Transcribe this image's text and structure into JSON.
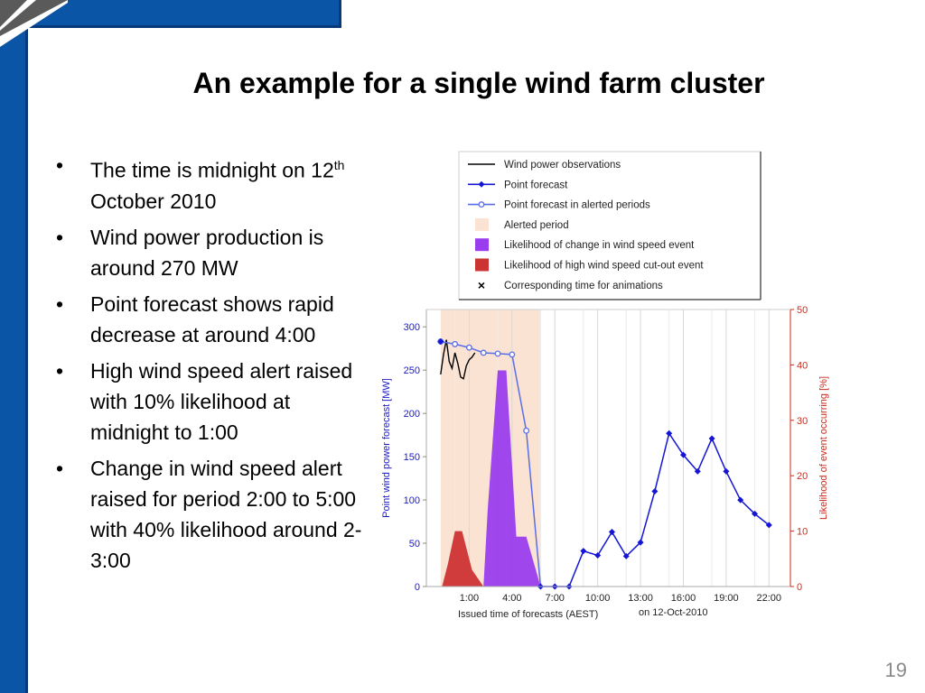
{
  "slide": {
    "title": "An example for a single wind farm cluster",
    "page_number": "19",
    "bullets": [
      {
        "text": "The time is midnight on 12",
        "sup": "th",
        "after": " October 2010"
      },
      {
        "text": "Wind power production is around 270 MW"
      },
      {
        "text": "Point forecast shows rapid decrease at around 4:00"
      },
      {
        "text": "High wind speed alert raised with 10% likelihood at midnight to 1:00"
      },
      {
        "text": "Change in wind speed alert raised for period 2:00 to 5:00 with 40% likelihood around 2-3:00"
      }
    ],
    "colors": {
      "theme_blue": "#0b55a6",
      "corner_gray": "#5a5a5a"
    }
  },
  "chart_data": {
    "type": "line",
    "xlabel": "Issued time of forecasts (AEST)",
    "xlabel_suffix": "on 12-Oct-2010",
    "ylabel_left": "Point wind power forecast [MW]",
    "ylabel_right": "Likelihood of event occurring [%]",
    "ylim_left": [
      0,
      320
    ],
    "ylim_right": [
      0,
      50
    ],
    "xlim": [
      -2,
      23.5
    ],
    "x_ticks": [
      1,
      4,
      7,
      10,
      13,
      16,
      19,
      22
    ],
    "x_tick_labels": [
      "1:00",
      "4:00",
      "7:00",
      "10:00",
      "13:00",
      "16:00",
      "19:00",
      "22:00"
    ],
    "y_ticks_left": [
      0,
      50,
      100,
      150,
      200,
      250,
      300
    ],
    "y_ticks_right": [
      0,
      10,
      20,
      30,
      40,
      50
    ],
    "grid": "vertical",
    "legend_position": "top",
    "legend": [
      {
        "label": "Wind power observations",
        "symbol": "line",
        "color": "#000000"
      },
      {
        "label": "Point forecast",
        "symbol": "line-dot",
        "color": "#1515d6"
      },
      {
        "label": "Point forecast in alerted periods",
        "symbol": "line-open",
        "color": "#5a6ee8"
      },
      {
        "label": "Alerted period",
        "symbol": "patch",
        "color": "#fbe3d3"
      },
      {
        "label": "Likelihood of change in wind speed event",
        "symbol": "patch",
        "color": "#9a3dee"
      },
      {
        "label": "Likelihood of high wind speed cut-out event",
        "symbol": "patch",
        "color": "#cc3333"
      },
      {
        "label": "Corresponding time for animations",
        "symbol": "x",
        "color": "#000000"
      }
    ],
    "alerted_period": [
      -1,
      6
    ],
    "observations": {
      "x": [
        -1,
        -0.8,
        -0.6,
        -0.4,
        -0.2,
        0,
        0.2,
        0.4,
        0.6,
        0.8,
        1,
        1.2,
        1.4
      ],
      "y": [
        245,
        268,
        285,
        260,
        252,
        270,
        258,
        242,
        240,
        255,
        262,
        265,
        270
      ]
    },
    "forecast_alerted": {
      "x": [
        -1,
        0,
        1,
        2,
        3,
        4,
        5
      ],
      "y": [
        283,
        280,
        276,
        270,
        269,
        268,
        180
      ]
    },
    "forecast": {
      "x": [
        6,
        7,
        8,
        9,
        10,
        11,
        12,
        13,
        14,
        15,
        16,
        17,
        18,
        19,
        20,
        21,
        22
      ],
      "y": [
        0,
        0,
        0,
        41,
        36,
        63,
        35,
        51,
        110,
        177,
        152,
        133,
        171,
        133,
        100,
        84,
        71
      ]
    },
    "change_likelihood": {
      "x": [
        2,
        2.3,
        3,
        3.6,
        4.3,
        5,
        6
      ],
      "y": [
        0,
        14,
        39,
        39,
        9,
        9,
        0
      ]
    },
    "cutout_likelihood": {
      "x": [
        -0.9,
        -0.5,
        0,
        0.5,
        1.2,
        2
      ],
      "y": [
        0,
        4,
        10,
        10,
        3,
        0
      ]
    },
    "animation_marker_x": -1,
    "colors": {
      "left_axis": "#1a1ac8",
      "right_axis": "#cc2a1a"
    }
  }
}
